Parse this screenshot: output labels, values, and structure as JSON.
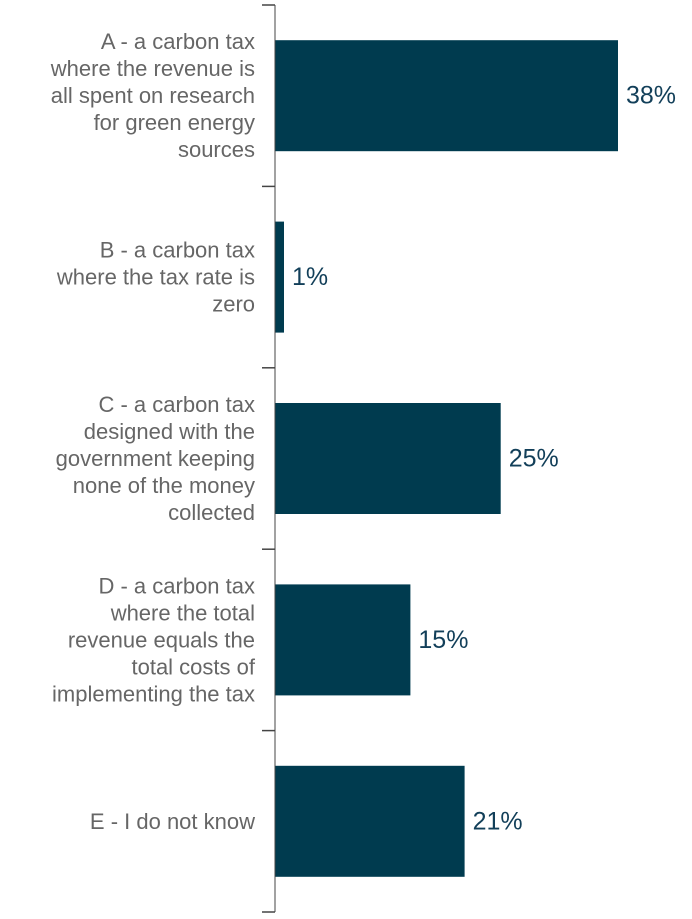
{
  "chart_data": {
    "type": "bar",
    "orientation": "horizontal",
    "categories": [
      [
        "A - a carbon tax",
        "where the revenue is",
        "all spent on research",
        "for green energy",
        "sources"
      ],
      [
        "B - a carbon tax",
        "where the tax rate is",
        "zero"
      ],
      [
        "C - a carbon tax",
        "designed with the",
        "government keeping",
        "none of the money",
        "collected"
      ],
      [
        "D - a carbon tax",
        "where the total",
        "revenue equals the",
        "total costs of",
        "implementing the tax"
      ],
      [
        "E - I do not know"
      ]
    ],
    "values": [
      38,
      1,
      25,
      15,
      21
    ],
    "data_labels": [
      "38%",
      "1%",
      "25%",
      "15%",
      "21%"
    ],
    "unit": "%",
    "xlim": [
      0,
      38
    ],
    "grid": false,
    "legend": "none",
    "colors": {
      "bar": "#003b4f",
      "value_label": "#123f59",
      "category_label": "#666666",
      "axis": "#444444"
    }
  }
}
